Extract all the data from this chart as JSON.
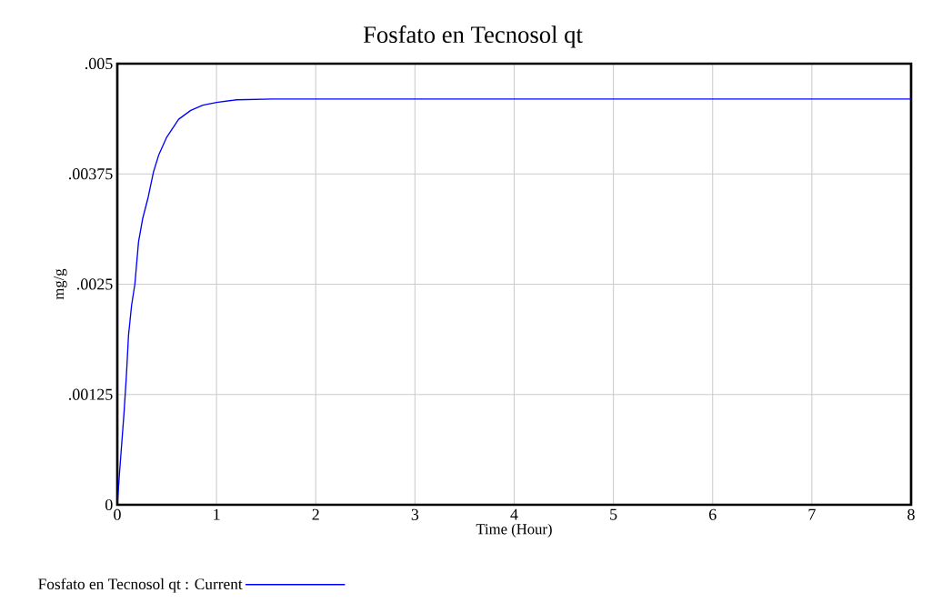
{
  "chart_data": {
    "type": "line",
    "title": "Fosfato en Tecnosol qt",
    "xlabel": "Time (Hour)",
    "ylabel": "mg/g",
    "xlim": [
      0,
      8
    ],
    "ylim": [
      0,
      0.005
    ],
    "xticks": [
      0,
      1,
      2,
      3,
      4,
      5,
      6,
      7,
      8
    ],
    "yticks": [
      0,
      {
        "value": 0.00125,
        "label": ".00125"
      },
      {
        "value": 0.0025,
        "label": ".0025"
      },
      {
        "value": 0.00375,
        "label": ".00375"
      },
      {
        "value": 0.005,
        "label": ".005"
      }
    ],
    "grid": true,
    "legend": "bottom",
    "marker": "none",
    "line_style": "solid",
    "series": [
      {
        "name": "Fosfato en Tecnosol qt : Current",
        "color": "#0000ff",
        "x": [
          0,
          0.021,
          0.067,
          0.092,
          0.113,
          0.144,
          0.177,
          0.214,
          0.257,
          0.312,
          0.364,
          0.419,
          0.495,
          0.618,
          0.74,
          0.862,
          1.0,
          1.2,
          1.57,
          2,
          3,
          4,
          5,
          6,
          7,
          8
        ],
        "values": [
          0,
          0.00034,
          0.00103,
          0.00147,
          0.00192,
          0.00226,
          0.0025,
          0.00298,
          0.00325,
          0.00349,
          0.00377,
          0.00397,
          0.00416,
          0.00437,
          0.00447,
          0.00453,
          0.00456,
          0.00459,
          0.0046,
          0.0046,
          0.0046,
          0.0046,
          0.0046,
          0.0046,
          0.0046,
          0.0046
        ]
      }
    ]
  }
}
